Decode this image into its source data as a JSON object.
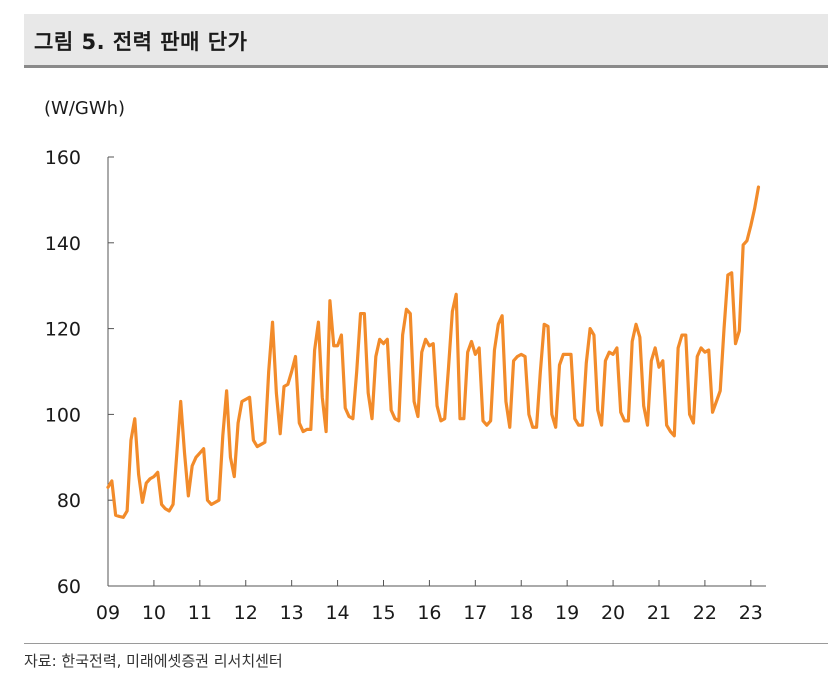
{
  "figure": {
    "title": "그림 5. 전력 판매 단가",
    "unit": "(W/GWh)",
    "source": "자료: 한국전력, 미래에셋증권 리서치센터"
  },
  "colors": {
    "line": "#f28b2a",
    "axis": "#555555",
    "title_bg": "#e8e8e8",
    "title_rule": "#8a8a8a"
  },
  "chart_data": {
    "type": "line",
    "title": "그림 5. 전력 판매 단가",
    "ylabel": "(W/GWh)",
    "xlabel": "",
    "ylim": [
      60,
      160
    ],
    "yticks": [
      60,
      80,
      100,
      120,
      140,
      160
    ],
    "xlim": [
      2009.0,
      2023.2
    ],
    "xtick_labels": [
      "09",
      "10",
      "11",
      "12",
      "13",
      "14",
      "15",
      "16",
      "17",
      "18",
      "19",
      "20",
      "21",
      "22",
      "23"
    ],
    "grid": false,
    "series": [
      {
        "name": "",
        "frequency": "monthly",
        "start": "2009-01",
        "values": [
          83.0,
          84.5,
          76.5,
          76.2,
          76.0,
          77.5,
          94.0,
          99.0,
          86.0,
          79.5,
          84.0,
          85.0,
          85.5,
          86.5,
          79.0,
          78.0,
          77.5,
          79.0,
          91.0,
          103.0,
          91.0,
          81.0,
          88.0,
          90.0,
          91.0,
          92.0,
          80.0,
          79.0,
          79.5,
          80.0,
          95.0,
          105.5,
          90.0,
          85.5,
          98.0,
          103.0,
          103.5,
          104.0,
          94.0,
          92.5,
          93.0,
          93.5,
          110.0,
          121.5,
          105.0,
          95.5,
          106.5,
          107.0,
          110.0,
          113.5,
          98.0,
          96.0,
          96.5,
          96.5,
          115.0,
          121.5,
          104.0,
          96.0,
          126.5,
          116.0,
          116.0,
          118.5,
          101.5,
          99.5,
          99.0,
          110.0,
          123.5,
          123.5,
          105.0,
          99.0,
          113.5,
          117.5,
          116.5,
          117.5,
          101.0,
          99.0,
          98.5,
          118.5,
          124.5,
          123.5,
          103.0,
          99.5,
          114.5,
          117.5,
          116.0,
          116.5,
          102.0,
          98.5,
          99.0,
          111.0,
          124.0,
          128.0,
          99.0,
          99.0,
          114.5,
          117.0,
          114.0,
          115.5,
          98.5,
          97.5,
          98.5,
          115.0,
          121.0,
          123.0,
          103.0,
          97.0,
          112.5,
          113.5,
          114.0,
          113.5,
          100.0,
          97.0,
          97.0,
          110.0,
          121.0,
          120.5,
          100.0,
          97.0,
          111.5,
          114.0,
          114.0,
          114.0,
          99.0,
          97.5,
          97.5,
          112.0,
          120.0,
          118.5,
          101.0,
          97.5,
          112.5,
          114.5,
          114.0,
          115.5,
          100.5,
          98.5,
          98.5,
          117.0,
          121.0,
          118.0,
          102.0,
          97.5,
          112.5,
          115.5,
          111.0,
          112.5,
          97.5,
          96.0,
          95.0,
          115.5,
          118.5,
          118.5,
          100.0,
          98.0,
          113.5,
          115.5,
          114.5,
          115.0,
          100.5,
          103.0,
          105.5,
          120.0,
          132.5,
          133.0,
          116.5,
          119.5,
          139.5,
          140.5,
          144.0,
          148.0,
          153.0
        ]
      }
    ]
  }
}
